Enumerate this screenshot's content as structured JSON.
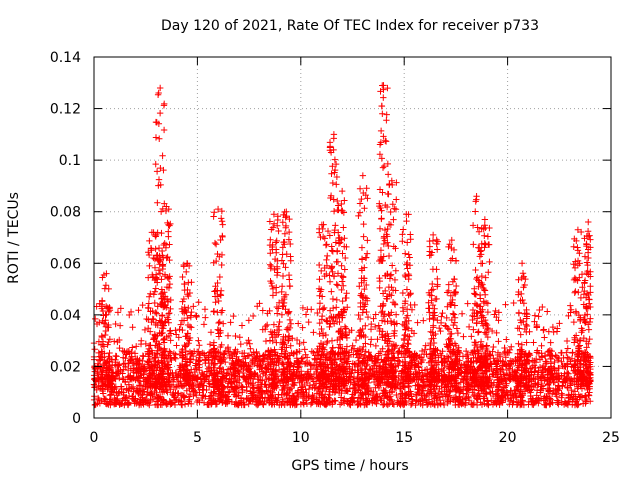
{
  "chart_data": {
    "type": "scatter",
    "title": "Day 120 of 2021, Rate Of TEC Index for receiver p733",
    "xlabel": "GPS time / hours",
    "ylabel": "ROTI / TECUs",
    "xlim": [
      0,
      25
    ],
    "ylim": [
      0,
      0.14
    ],
    "xticks": [
      0,
      5,
      10,
      15,
      20,
      25
    ],
    "yticks": [
      0,
      0.02,
      0.04,
      0.06,
      0.08,
      0.1,
      0.12,
      0.14
    ],
    "xtick_labels": [
      "0",
      "5",
      "10",
      "15",
      "20",
      "25"
    ],
    "ytick_labels": [
      "0",
      "0.02",
      "0.04",
      "0.06",
      "0.08",
      "0.1",
      "0.12",
      "0.14"
    ],
    "grid": true,
    "marker": "+",
    "marker_color": "#ff0000",
    "x_data_range": [
      0,
      24
    ],
    "baseline_band": [
      0.005,
      0.02
    ],
    "activity_peaks": [
      {
        "x": 0.6,
        "y": 0.056
      },
      {
        "x": 2.8,
        "y": 0.072
      },
      {
        "x": 3.2,
        "y": 0.128
      },
      {
        "x": 3.5,
        "y": 0.082
      },
      {
        "x": 4.5,
        "y": 0.06
      },
      {
        "x": 6.0,
        "y": 0.081
      },
      {
        "x": 8.7,
        "y": 0.079
      },
      {
        "x": 9.3,
        "y": 0.08
      },
      {
        "x": 11.1,
        "y": 0.075
      },
      {
        "x": 11.6,
        "y": 0.11
      },
      {
        "x": 12.0,
        "y": 0.088
      },
      {
        "x": 13.0,
        "y": 0.094
      },
      {
        "x": 14.0,
        "y": 0.129
      },
      {
        "x": 14.4,
        "y": 0.092
      },
      {
        "x": 15.1,
        "y": 0.079
      },
      {
        "x": 16.4,
        "y": 0.071
      },
      {
        "x": 17.3,
        "y": 0.069
      },
      {
        "x": 18.5,
        "y": 0.086
      },
      {
        "x": 18.9,
        "y": 0.077
      },
      {
        "x": 20.7,
        "y": 0.06
      },
      {
        "x": 23.4,
        "y": 0.073
      },
      {
        "x": 23.9,
        "y": 0.076
      }
    ]
  }
}
